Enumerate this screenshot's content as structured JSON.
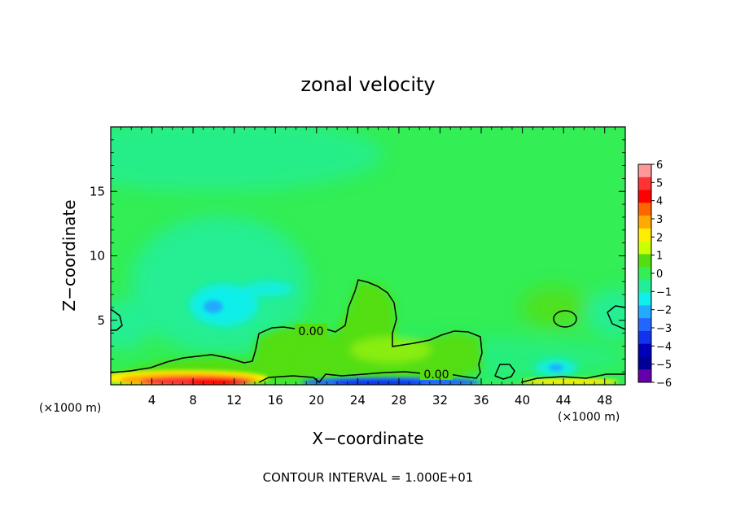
{
  "chart_data": {
    "type": "heatmap",
    "title": "zonal velocity",
    "xlabel": "X−coordinate",
    "ylabel": "Z−coordinate",
    "x_units": "(×1000 m)",
    "y_units": "(×1000 m)",
    "xlim": [
      0,
      50
    ],
    "ylim": [
      0,
      20
    ],
    "x_ticks": [
      4,
      8,
      12,
      16,
      20,
      24,
      28,
      32,
      36,
      40,
      44,
      48
    ],
    "x_tick_labels": [
      "4",
      "8",
      "12",
      "16",
      "20",
      "24",
      "28",
      "32",
      "36",
      "40",
      "44",
      "48"
    ],
    "y_ticks": [
      5,
      10,
      15
    ],
    "y_tick_labels": [
      "5",
      "10",
      "15"
    ],
    "colorbar": {
      "min": -6,
      "max": 6,
      "ticks": [
        6,
        5,
        4,
        3,
        2,
        1,
        0,
        -1,
        -2,
        -3,
        -4,
        -5,
        -6
      ],
      "tick_labels": [
        "6",
        "5",
        "4",
        "3",
        "2",
        "1",
        "0",
        "−1",
        "−2",
        "−3",
        "−4",
        "−5",
        "−6"
      ],
      "colors": [
        "#ff9999",
        "#ff3333",
        "#ff0000",
        "#ff6600",
        "#ffaa00",
        "#ffee00",
        "#ccff00",
        "#55dd11",
        "#33ee55",
        "#22ee99",
        "#11eeee",
        "#22aaff",
        "#2266ff",
        "#1133ee",
        "#0000bb",
        "#000099",
        "#6600aa"
      ]
    },
    "contour_labels": [
      "0.00",
      "0.00"
    ],
    "footer": "CONTOUR INTERVAL = 1.000E+01",
    "features": [
      {
        "type": "min",
        "x": 10,
        "z": 6.2,
        "value": -2.5
      },
      {
        "type": "min",
        "x": 43,
        "z": 1.3,
        "value": -2.5
      },
      {
        "type": "max",
        "x": 10,
        "z": 0.5,
        "value": 5.5
      },
      {
        "type": "min",
        "x": 28,
        "z": 0.3,
        "value": -4.5
      }
    ]
  }
}
